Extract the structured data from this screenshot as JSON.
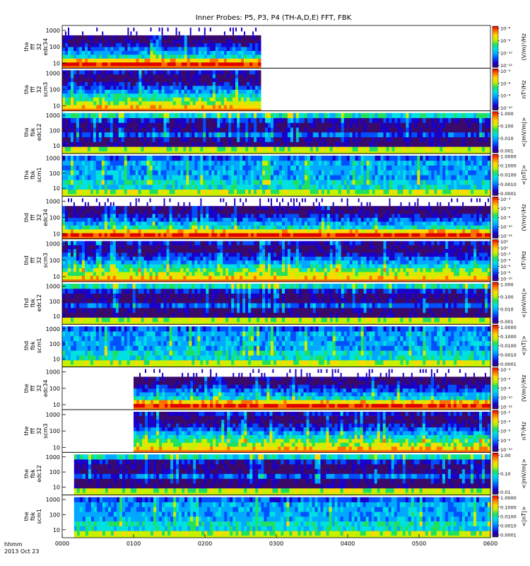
{
  "figure": {
    "title": "Inner Probes: P5, P3, P4 (TH-A,D,E) FFT, FBK",
    "x_label_line1": "hhmm",
    "x_label_line2": "2013 Oct 23"
  },
  "colormap": [
    "#3a0a6a",
    "#1a00c8",
    "#0050ff",
    "#00a8ff",
    "#00e0e0",
    "#20e060",
    "#c8f000",
    "#ffd800",
    "#ff7000",
    "#e00000"
  ],
  "chart_data": {
    "type": "heatmap",
    "title": "Inner Probes: P5, P3, P4 (TH-A,D,E) FFT, FBK",
    "x_ticks": [
      "0000",
      "0100",
      "0200",
      "0300",
      "0400",
      "0500",
      "0600"
    ],
    "x_range_hhmm": [
      "0000",
      "0600"
    ],
    "y_scale": "log",
    "panels": [
      {
        "ylabel": [
          "tha",
          "fff",
          "32",
          "edc34"
        ],
        "y_ticks": [
          "10",
          "100",
          "1000"
        ],
        "y_range": [
          5,
          2000
        ],
        "cbar_unit": "(V/m)²/Hz",
        "cbar_ticks": [
          "10⁻⁶",
          "10⁻⁸",
          "10⁻¹⁰",
          "10⁻¹²"
        ],
        "cbar_log": true,
        "data_start_hhmm": "0000",
        "data_end_hhmm": "0247",
        "style": "fff_e"
      },
      {
        "ylabel": [
          "tha",
          "fff",
          "32",
          "scm3"
        ],
        "y_ticks": [
          "10",
          "100",
          "1000"
        ],
        "y_range": [
          5,
          2000
        ],
        "cbar_unit": "nT²/Hz",
        "cbar_ticks": [
          "10⁻⁴",
          "10⁻⁶",
          "10⁻⁸",
          "10⁻¹⁰"
        ],
        "cbar_log": true,
        "data_start_hhmm": "0000",
        "data_end_hhmm": "0247",
        "style": "fff_b"
      },
      {
        "ylabel": [
          "tha",
          "fbk",
          "edc12"
        ],
        "y_ticks": [
          "10",
          "100",
          "1000"
        ],
        "y_range": [
          3,
          2000
        ],
        "cbar_unit": "<|mV/m|>",
        "cbar_ticks": [
          "1.000",
          "0.100",
          "0.010",
          "0.001"
        ],
        "cbar_log": true,
        "data_start_hhmm": "0000",
        "data_end_hhmm": "0600",
        "style": "fbk_e"
      },
      {
        "ylabel": [
          "tha",
          "fbk",
          "scm1"
        ],
        "y_ticks": [
          "10",
          "100",
          "1000"
        ],
        "y_range": [
          3,
          2000
        ],
        "cbar_unit": "<|nT|>",
        "cbar_ticks": [
          "1.0000",
          "0.1000",
          "0.0100",
          "0.0010",
          "0.0001"
        ],
        "cbar_log": true,
        "data_start_hhmm": "0000",
        "data_end_hhmm": "0600",
        "style": "fbk_b"
      },
      {
        "ylabel": [
          "thd",
          "fff",
          "32",
          "edc34"
        ],
        "y_ticks": [
          "10",
          "100",
          "1000"
        ],
        "y_range": [
          5,
          2000
        ],
        "cbar_unit": "(V/m)²/Hz",
        "cbar_ticks": [
          "10⁻⁴",
          "10⁻⁶",
          "10⁻⁸",
          "10⁻¹⁰",
          "10⁻¹²"
        ],
        "cbar_log": true,
        "data_start_hhmm": "0000",
        "data_end_hhmm": "0600",
        "style": "fff_e"
      },
      {
        "ylabel": [
          "thd",
          "fff",
          "32",
          "scm3"
        ],
        "y_ticks": [
          "10",
          "100",
          "1000"
        ],
        "y_range": [
          5,
          2000
        ],
        "cbar_unit": "nT²/Hz",
        "cbar_ticks": [
          "10²",
          "10⁰",
          "10⁻²",
          "10⁻⁴",
          "10⁻⁶",
          "10⁻⁸",
          "10⁻¹⁰"
        ],
        "cbar_log": true,
        "data_start_hhmm": "0000",
        "data_end_hhmm": "0600",
        "style": "fff_b"
      },
      {
        "ylabel": [
          "thd",
          "fbk",
          "edc12"
        ],
        "y_ticks": [
          "10",
          "100",
          "1000"
        ],
        "y_range": [
          3,
          2000
        ],
        "cbar_unit": "<|mV/m|>",
        "cbar_ticks": [
          "1.000",
          "0.100",
          "0.010",
          "0.001"
        ],
        "cbar_log": true,
        "data_start_hhmm": "0000",
        "data_end_hhmm": "0600",
        "style": "fbk_e"
      },
      {
        "ylabel": [
          "thd",
          "fbk",
          "scm1"
        ],
        "y_ticks": [
          "10",
          "100",
          "1000"
        ],
        "y_range": [
          3,
          2000
        ],
        "cbar_unit": "<|nT|>",
        "cbar_ticks": [
          "1.0000",
          "0.1000",
          "0.0100",
          "0.0010",
          "0.0001"
        ],
        "cbar_log": true,
        "data_start_hhmm": "0000",
        "data_end_hhmm": "0600",
        "style": "fbk_b"
      },
      {
        "ylabel": [
          "the",
          "fff",
          "32",
          "edc34"
        ],
        "y_ticks": [
          "10",
          "100",
          "1000"
        ],
        "y_range": [
          5,
          2000
        ],
        "cbar_unit": "(V/m)²/Hz",
        "cbar_ticks": [
          "10⁻⁴",
          "10⁻⁶",
          "10⁻⁸",
          "10⁻¹⁰",
          "10⁻¹²"
        ],
        "cbar_log": true,
        "data_start_hhmm": "0100",
        "data_end_hhmm": "0600",
        "style": "fff_e"
      },
      {
        "ylabel": [
          "the",
          "fff",
          "32",
          "scm3"
        ],
        "y_ticks": [
          "10",
          "100",
          "1000"
        ],
        "y_range": [
          5,
          2000
        ],
        "cbar_unit": "nT²/Hz",
        "cbar_ticks": [
          "10⁻²",
          "10⁻⁴",
          "10⁻⁶",
          "10⁻⁸",
          "10⁻¹⁰"
        ],
        "cbar_log": true,
        "data_start_hhmm": "0100",
        "data_end_hhmm": "0600",
        "style": "fff_b"
      },
      {
        "ylabel": [
          "the",
          "fbk",
          "edc12"
        ],
        "y_ticks": [
          "10",
          "100",
          "1000"
        ],
        "y_range": [
          3,
          2000
        ],
        "cbar_unit": "<|mV/m|>",
        "cbar_ticks": [
          "1.00",
          "0.10",
          "0.01"
        ],
        "cbar_log": true,
        "data_start_hhmm": "0010",
        "data_end_hhmm": "0600",
        "style": "fbk_e"
      },
      {
        "ylabel": [
          "the",
          "fbk",
          "scm1"
        ],
        "y_ticks": [
          "10",
          "100",
          "1000"
        ],
        "y_range": [
          3,
          2000
        ],
        "cbar_unit": "<|nT|>",
        "cbar_ticks": [
          "1.0000",
          "0.1000",
          "0.0100",
          "0.0010",
          "0.0001"
        ],
        "cbar_log": true,
        "data_start_hhmm": "0010",
        "data_end_hhmm": "0600",
        "style": "fbk_b"
      }
    ]
  }
}
